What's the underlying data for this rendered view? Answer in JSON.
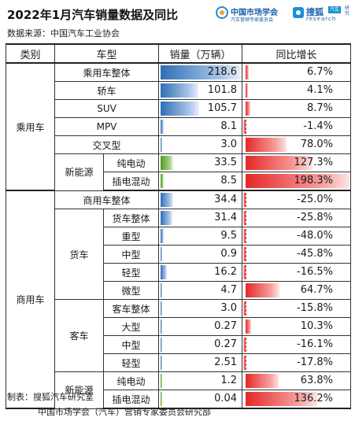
{
  "title": "2022年1月汽车销量数据及同比",
  "source": "数据来源：中国汽车工业协会",
  "logos": {
    "cmas_name": "中国市场学会",
    "cmas_sub": "汽车营销专家委员会",
    "sohu_name": "搜狐",
    "sohu_badge": "汽车",
    "sohu_sub": "research",
    "sohu_side": "研究"
  },
  "headers": {
    "category": "类别",
    "model": "车型",
    "sales": "销量（万辆）",
    "yoy": "同比增长"
  },
  "groups": {
    "passenger": "乘用车",
    "commercial": "商用车",
    "nev": "新能源",
    "truck": "货车",
    "bus": "客车"
  },
  "chart_data": {
    "type": "table",
    "columns": [
      "类别",
      "车型",
      "销量（万辆）",
      "同比增长"
    ],
    "sales_max": 218.6,
    "rows": [
      {
        "model": "乘用车整体",
        "sales": 218.6,
        "sales_text": "218.6",
        "yoy": 6.7,
        "yoy_text": "6.7%"
      },
      {
        "model": "轿车",
        "sales": 101.8,
        "sales_text": "101.8",
        "yoy": 4.1,
        "yoy_text": "4.1%"
      },
      {
        "model": "SUV",
        "sales": 105.7,
        "sales_text": "105.7",
        "yoy": 8.7,
        "yoy_text": "8.7%"
      },
      {
        "model": "MPV",
        "sales": 8.1,
        "sales_text": "8.1",
        "yoy": -1.4,
        "yoy_text": "-1.4%"
      },
      {
        "model": "交叉型",
        "sales": 3.0,
        "sales_text": "3.0",
        "yoy": 78.0,
        "yoy_text": "78.0%"
      },
      {
        "model": "纯电动",
        "sales": 33.5,
        "sales_text": "33.5",
        "yoy": 127.3,
        "yoy_text": "127.3%"
      },
      {
        "model": "插电混动",
        "sales": 8.5,
        "sales_text": "8.5",
        "yoy": 198.3,
        "yoy_text": "198.3%"
      },
      {
        "model": "商用车整体",
        "sales": 34.4,
        "sales_text": "34.4",
        "yoy": -25.0,
        "yoy_text": "-25.0%"
      },
      {
        "model": "货车整体",
        "sales": 31.4,
        "sales_text": "31.4",
        "yoy": -25.8,
        "yoy_text": "-25.8%"
      },
      {
        "model": "重型",
        "sales": 9.5,
        "sales_text": "9.5",
        "yoy": -48.0,
        "yoy_text": "-48.0%"
      },
      {
        "model": "中型",
        "sales": 0.9,
        "sales_text": "0.9",
        "yoy": -45.8,
        "yoy_text": "-45.8%"
      },
      {
        "model": "轻型",
        "sales": 16.2,
        "sales_text": "16.2",
        "yoy": -16.5,
        "yoy_text": "-16.5%"
      },
      {
        "model": "微型",
        "sales": 4.7,
        "sales_text": "4.7",
        "yoy": 64.7,
        "yoy_text": "64.7%"
      },
      {
        "model": "客车整体",
        "sales": 3.0,
        "sales_text": "3.0",
        "yoy": -15.8,
        "yoy_text": "-15.8%"
      },
      {
        "model": "大型",
        "sales": 0.27,
        "sales_text": "0.27",
        "yoy": 10.3,
        "yoy_text": "10.3%"
      },
      {
        "model": "中型",
        "sales": 0.27,
        "sales_text": "0.27",
        "yoy": -16.1,
        "yoy_text": "-16.1%"
      },
      {
        "model": "轻型",
        "sales": 2.51,
        "sales_text": "2.51",
        "yoy": -17.8,
        "yoy_text": "-17.8%"
      },
      {
        "model": "纯电动",
        "sales": 1.2,
        "sales_text": "1.2",
        "yoy": 63.8,
        "yoy_text": "63.8%"
      },
      {
        "model": "插电混动",
        "sales": 0.04,
        "sales_text": "0.04",
        "yoy": 136.2,
        "yoy_text": "136.2%"
      }
    ]
  },
  "colors": {
    "sales_bar": "#2f6fb5",
    "nev_sales_bar": "#4e9b2a",
    "yoy_bar": "#e52727"
  },
  "footer": {
    "maker": "制表：搜狐汽车研究室",
    "org": "中国市场学会（汽车）营销专家委员会研究部"
  }
}
